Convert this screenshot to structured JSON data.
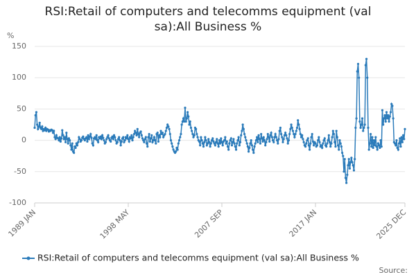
{
  "chart_data": {
    "type": "line",
    "title": "RSI:Retail of computers and telecomms equipment (val sa):All Business %",
    "y_label": "%",
    "source": "Source:",
    "categories": [
      "1989 JAN",
      null,
      null,
      null,
      null,
      null,
      null,
      null,
      null,
      null,
      null,
      null,
      null,
      null,
      null,
      null,
      null,
      null,
      null,
      null,
      null,
      null,
      null,
      null,
      null,
      null,
      null,
      null,
      null,
      null,
      null,
      null,
      null,
      null,
      null,
      null,
      null,
      null,
      null,
      null,
      null,
      null,
      null,
      null,
      null,
      null,
      null,
      null,
      null,
      null,
      null,
      null,
      null,
      null,
      null,
      null,
      null,
      null,
      null,
      null,
      null,
      null,
      null,
      null,
      null,
      null,
      null,
      null,
      null,
      null,
      null,
      null,
      null,
      null,
      null,
      null,
      null,
      null,
      null,
      null,
      null,
      null,
      null,
      null,
      null,
      null,
      null,
      null,
      null,
      null,
      null,
      null,
      null,
      null,
      null,
      null,
      null,
      null,
      null,
      null,
      null,
      null,
      null,
      null,
      null,
      null,
      null,
      null,
      null,
      null,
      null,
      null,
      "1998 MAY",
      null,
      null,
      null,
      null,
      null,
      null,
      null,
      null,
      null,
      null,
      null,
      null,
      null,
      null,
      null,
      null,
      null,
      null,
      null,
      null,
      null,
      null,
      null,
      null,
      null,
      null,
      null,
      null,
      null,
      null,
      null,
      null,
      null,
      null,
      null,
      null,
      null,
      null,
      null,
      null,
      null,
      null,
      null,
      null,
      null,
      null,
      null,
      null,
      null,
      null,
      null,
      null,
      null,
      null,
      null,
      null,
      null,
      null,
      null,
      null,
      null,
      null,
      null,
      null,
      null,
      null,
      null,
      null,
      null,
      null,
      null,
      null,
      null,
      null,
      null,
      null,
      null,
      null,
      null,
      null,
      null,
      null,
      null,
      null,
      null,
      null,
      null,
      null,
      null,
      null,
      null,
      null,
      null,
      null,
      null,
      null,
      null,
      null,
      null,
      null,
      null,
      null,
      null,
      null,
      null,
      null,
      null,
      null,
      null,
      null,
      null,
      "2007 SEP",
      null,
      null,
      null,
      null,
      null,
      null,
      null,
      null,
      null,
      null,
      null,
      null,
      null,
      null,
      null,
      null,
      null,
      null,
      null,
      null,
      null,
      null,
      null,
      null,
      null,
      null,
      null,
      null,
      null,
      null,
      null,
      null,
      null,
      null,
      null,
      null,
      null,
      null,
      null,
      null,
      null,
      null,
      null,
      null,
      null,
      null,
      null,
      null,
      null,
      null,
      null,
      null,
      null,
      null,
      null,
      null,
      null,
      null,
      null,
      null,
      null,
      null,
      null,
      null,
      null,
      null,
      null,
      null,
      null,
      null,
      null,
      null,
      null,
      null,
      null,
      null,
      null,
      null,
      null,
      null,
      null,
      null,
      null,
      null,
      null,
      null,
      null,
      null,
      null,
      null,
      null,
      null,
      null,
      null,
      null,
      null,
      null,
      null,
      null,
      null,
      null,
      null,
      null,
      null,
      null,
      null,
      null,
      null,
      null,
      null,
      null,
      "2017 JAN",
      null,
      null,
      null,
      null,
      null,
      null,
      null,
      null,
      null,
      null,
      null,
      null,
      null,
      null,
      null,
      null,
      null,
      null,
      null,
      null,
      null,
      null,
      null,
      null,
      null,
      null,
      null,
      null,
      null,
      null,
      null,
      null,
      null,
      null,
      null,
      null,
      null,
      null,
      null,
      null,
      null,
      null,
      null,
      null,
      null,
      null,
      null,
      null,
      null,
      null,
      null,
      null,
      null,
      null,
      null,
      null,
      null,
      null,
      null,
      null,
      null,
      null,
      null,
      null,
      null,
      null,
      null,
      null,
      null,
      null,
      null,
      null,
      null,
      null,
      null,
      null,
      null,
      null,
      null,
      null,
      null,
      null,
      null,
      null,
      null,
      null,
      null,
      null,
      null,
      null,
      null,
      null,
      null,
      null,
      null,
      null,
      null,
      null,
      null,
      null,
      null,
      null,
      null,
      null,
      null,
      null,
      "2025 DEC"
    ],
    "series": [
      {
        "name": "RSI:Retail of computers and telecomms equipment (val sa):All Business %",
        "color": "#2b7bba",
        "values": [
          20,
          40,
          45,
          25,
          18,
          22,
          28,
          20,
          18,
          22,
          15,
          18,
          16,
          20,
          15,
          18,
          17,
          14,
          16,
          15,
          17,
          16,
          12,
          15,
          5,
          2,
          8,
          4,
          3,
          0,
          5,
          -2,
          3,
          16,
          8,
          2,
          5,
          -3,
          12,
          2,
          -5,
          3,
          0,
          -8,
          -15,
          -5,
          -18,
          -20,
          -10,
          -12,
          -5,
          -8,
          -3,
          5,
          2,
          -2,
          0,
          4,
          6,
          2,
          0,
          3,
          5,
          -2,
          8,
          2,
          6,
          10,
          4,
          -5,
          -8,
          3,
          5,
          2,
          8,
          0,
          -3,
          5,
          3,
          6,
          2,
          8,
          4,
          0,
          -5,
          -3,
          2,
          5,
          8,
          3,
          0,
          -2,
          4,
          6,
          2,
          8,
          5,
          0,
          -5,
          -3,
          2,
          5,
          0,
          -8,
          -2,
          3,
          5,
          -3,
          0,
          5,
          3,
          8,
          2,
          -2,
          5,
          3,
          8,
          0,
          5,
          10,
          15,
          12,
          8,
          18,
          10,
          5,
          12,
          14,
          8,
          3,
          0,
          -3,
          2,
          5,
          -5,
          -10,
          5,
          10,
          -2,
          3,
          8,
          -3,
          0,
          5,
          0,
          -5,
          10,
          12,
          -2,
          8,
          5,
          15,
          10,
          12,
          5,
          8,
          10,
          15,
          20,
          25,
          22,
          18,
          10,
          0,
          -5,
          -10,
          -15,
          -18,
          -20,
          -18,
          -12,
          -15,
          -5,
          0,
          5,
          10,
          25,
          30,
          35,
          30,
          52,
          30,
          35,
          45,
          38,
          25,
          30,
          20,
          15,
          10,
          5,
          8,
          20,
          18,
          10,
          5,
          0,
          -2,
          -8,
          5,
          0,
          -5,
          -10,
          -3,
          5,
          0,
          -8,
          -5,
          2,
          -3,
          -10,
          -5,
          0,
          3,
          -2,
          -5,
          -8,
          -3,
          2,
          -5,
          -10,
          0,
          -5,
          3,
          -3,
          -8,
          -2,
          0,
          5,
          -5,
          -2,
          -10,
          -15,
          -5,
          0,
          3,
          -8,
          -3,
          2,
          -5,
          -10,
          -15,
          -5,
          0,
          5,
          -8,
          -3,
          8,
          15,
          25,
          18,
          10,
          5,
          0,
          -5,
          -10,
          -18,
          -12,
          -5,
          0,
          -8,
          -15,
          -20,
          -10,
          -5,
          0,
          5,
          -3,
          8,
          2,
          -5,
          10,
          3,
          -2,
          5,
          0,
          -8,
          -3,
          2,
          10,
          5,
          -2,
          8,
          12,
          5,
          0,
          -3,
          5,
          10,
          5,
          0,
          -5,
          2,
          15,
          20,
          10,
          5,
          -3,
          2,
          8,
          12,
          8,
          3,
          -5,
          0,
          10,
          18,
          25,
          20,
          15,
          10,
          5,
          10,
          15,
          20,
          32,
          25,
          18,
          10,
          5,
          8,
          2,
          -3,
          -8,
          -10,
          -5,
          0,
          3,
          -8,
          -15,
          -5,
          5,
          10,
          -2,
          -8,
          -3,
          -5,
          -10,
          -8,
          0,
          5,
          -3,
          -10,
          -8,
          -12,
          -5,
          0,
          3,
          -8,
          -10,
          -5,
          0,
          8,
          -3,
          -10,
          -5,
          5,
          15,
          10,
          -3,
          -10,
          15,
          5,
          -8,
          -15,
          0,
          -5,
          -10,
          -20,
          -25,
          -50,
          -30,
          -60,
          -68,
          -55,
          -40,
          -30,
          -45,
          -35,
          -28,
          -35,
          -40,
          -48,
          -30,
          20,
          35,
          110,
          122,
          100,
          30,
          20,
          25,
          35,
          15,
          20,
          25,
          120,
          130,
          100,
          20,
          -15,
          -5,
          10,
          -10,
          5,
          -12,
          0,
          -8,
          5,
          -10,
          -15,
          -5,
          -8,
          -12,
          0,
          -10,
          48,
          25,
          35,
          40,
          30,
          45,
          35,
          40,
          30,
          38,
          45,
          58,
          55,
          35,
          -3,
          -5,
          -8,
          0,
          -12,
          -15,
          -5,
          3,
          -10,
          5,
          -3,
          8,
          2,
          18
        ]
      }
    ],
    "ylim": [
      -100,
      150
    ],
    "yticks": [
      -100,
      -50,
      0,
      50,
      100,
      150
    ],
    "grid": true,
    "legend": "bottom"
  }
}
